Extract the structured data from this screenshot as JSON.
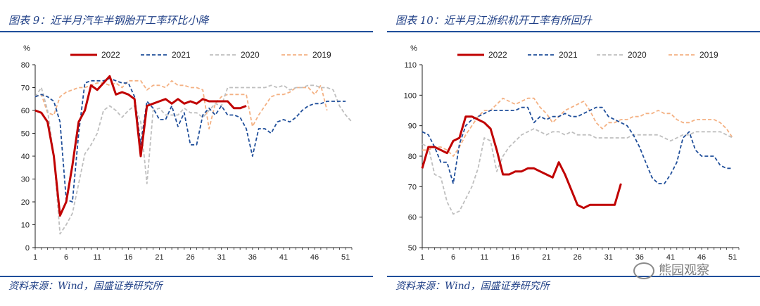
{
  "left": {
    "title": "图表 9：近半月汽车半钢胎开工率环比小降",
    "source": "资料来源：Wind，国盛证券研究所"
  },
  "right": {
    "title": "图表 10：近半月江浙织机开工率有所回升",
    "source": "资料来源：Wind，国盛证券研究所",
    "watermark": "熊园观察"
  },
  "colors": {
    "2022": "#c00000",
    "2021": "#1f4e9a",
    "2020": "#bfbfbf",
    "2019": "#f4b183",
    "accent": "#1f4e9a"
  },
  "chart_data": [
    {
      "type": "line",
      "title": "近半月汽车半钢胎开工率环比小降",
      "ylabel": "%",
      "xlabel": "",
      "ylim": [
        0,
        80
      ],
      "yticks": [
        0,
        10,
        20,
        30,
        40,
        50,
        60,
        70,
        80
      ],
      "xlim": [
        1,
        52
      ],
      "xticks": [
        1,
        6,
        11,
        16,
        21,
        26,
        31,
        36,
        41,
        46,
        51
      ],
      "legend_position": "top",
      "series": [
        {
          "name": "2022",
          "style": "solid",
          "x": [
            1,
            2,
            3,
            4,
            5,
            6,
            7,
            8,
            9,
            10,
            11,
            12,
            13,
            14,
            15,
            16,
            17,
            18,
            19,
            20,
            21,
            22,
            23,
            24,
            25,
            26,
            27,
            28,
            29,
            30,
            31,
            32,
            33,
            34,
            35
          ],
          "values": [
            60,
            59,
            55,
            40,
            14,
            20,
            36,
            55,
            60,
            71,
            69,
            72,
            75,
            67,
            68,
            67,
            65,
            40,
            62,
            63,
            64,
            65,
            63,
            65,
            63,
            64,
            63,
            65,
            64,
            64,
            64,
            64,
            61,
            61,
            62
          ]
        },
        {
          "name": "2021",
          "style": "dashed",
          "x": [
            1,
            2,
            3,
            4,
            5,
            6,
            7,
            8,
            9,
            10,
            11,
            12,
            13,
            14,
            15,
            16,
            17,
            18,
            19,
            20,
            21,
            22,
            23,
            24,
            25,
            26,
            27,
            28,
            29,
            30,
            31,
            32,
            33,
            34,
            35,
            36,
            37,
            38,
            39,
            40,
            41,
            42,
            43,
            44,
            45,
            46,
            47,
            48,
            49,
            50,
            51
          ],
          "values": [
            66,
            67,
            66,
            64,
            55,
            21,
            20,
            50,
            72,
            73,
            73,
            73,
            74,
            73,
            72,
            72,
            66,
            45,
            64,
            61,
            56,
            56,
            62,
            53,
            59,
            45,
            45,
            58,
            61,
            58,
            62,
            58,
            58,
            57,
            52,
            40,
            52,
            52,
            50,
            55,
            56,
            55,
            57,
            60,
            62,
            63,
            63,
            64,
            64,
            64,
            64
          ]
        },
        {
          "name": "2020",
          "style": "dashed",
          "x": [
            1,
            2,
            3,
            4,
            5,
            6,
            7,
            8,
            9,
            10,
            11,
            12,
            13,
            14,
            15,
            16,
            17,
            18,
            19,
            20,
            21,
            22,
            23,
            24,
            25,
            26,
            27,
            28,
            29,
            30,
            31,
            32,
            33,
            34,
            35,
            36,
            37,
            38,
            39,
            40,
            41,
            42,
            43,
            44,
            45,
            46,
            47,
            48,
            49,
            50,
            51,
            52
          ],
          "values": [
            66,
            70,
            60,
            40,
            6,
            10,
            15,
            28,
            41,
            45,
            50,
            60,
            62,
            60,
            57,
            60,
            62,
            55,
            28,
            60,
            61,
            58,
            58,
            58,
            61,
            59,
            59,
            57,
            60,
            63,
            62,
            70,
            70,
            70,
            70,
            70,
            70,
            70,
            71,
            70,
            71,
            69,
            70,
            70,
            71,
            71,
            70,
            70,
            69,
            62,
            58,
            55
          ]
        },
        {
          "name": "2019",
          "style": "dashed",
          "x": [
            1,
            2,
            3,
            4,
            5,
            6,
            7,
            8,
            9,
            10,
            11,
            12,
            13,
            14,
            15,
            16,
            17,
            18,
            19,
            20,
            21,
            22,
            23,
            24,
            25,
            26,
            27,
            28,
            29,
            30,
            31,
            32,
            33,
            34,
            35,
            36,
            37,
            38,
            39,
            40,
            41,
            42,
            43,
            44,
            45,
            46,
            47,
            48
          ],
          "values": [
            66,
            67,
            59,
            58,
            66,
            68,
            69,
            70,
            70,
            71,
            72,
            72,
            71,
            72,
            70,
            73,
            73,
            73,
            69,
            71,
            71,
            70,
            73,
            71,
            71,
            70,
            70,
            69,
            52,
            63,
            66,
            67,
            67,
            67,
            67,
            53,
            58,
            62,
            66,
            67,
            67,
            68,
            70,
            70,
            70,
            67,
            71,
            60
          ]
        }
      ]
    },
    {
      "type": "line",
      "title": "近半月江浙织机开工率有所回升",
      "ylabel": "%",
      "xlabel": "",
      "ylim": [
        50,
        110
      ],
      "yticks": [
        50,
        60,
        70,
        80,
        90,
        100,
        110
      ],
      "xlim": [
        1,
        52
      ],
      "xticks": [
        1,
        6,
        11,
        16,
        21,
        26,
        31,
        36,
        41,
        46,
        51
      ],
      "legend_position": "top",
      "series": [
        {
          "name": "2022",
          "style": "solid",
          "x": [
            1,
            2,
            3,
            4,
            5,
            6,
            7,
            8,
            9,
            10,
            11,
            12,
            13,
            14,
            15,
            16,
            17,
            18,
            19,
            20,
            21,
            22,
            23,
            24,
            25,
            26,
            27,
            28,
            29,
            30,
            31,
            32,
            33
          ],
          "values": [
            76,
            83,
            83,
            82,
            81,
            85,
            86,
            93,
            93,
            92,
            91,
            89,
            82,
            74,
            74,
            75,
            75,
            76,
            76,
            75,
            74,
            73,
            78,
            74,
            69,
            64,
            63,
            64,
            64,
            64,
            64,
            64,
            71
          ]
        },
        {
          "name": "2021",
          "style": "dashed",
          "x": [
            1,
            2,
            3,
            4,
            5,
            6,
            7,
            8,
            9,
            10,
            11,
            12,
            13,
            14,
            15,
            16,
            17,
            18,
            19,
            20,
            21,
            22,
            23,
            24,
            25,
            26,
            27,
            28,
            29,
            30,
            31,
            32,
            33,
            34,
            35,
            36,
            37,
            38,
            39,
            40,
            41,
            42,
            43,
            44,
            45,
            46,
            47,
            48,
            49,
            50,
            51
          ],
          "values": [
            88,
            87,
            83,
            78,
            78,
            71,
            84,
            90,
            92,
            93,
            94,
            95,
            95,
            95,
            95,
            95,
            96,
            96,
            91,
            93,
            92,
            93,
            93,
            94,
            93,
            93,
            94,
            95,
            96,
            96,
            93,
            92,
            91,
            90,
            87,
            83,
            78,
            73,
            71,
            71,
            74,
            78,
            86,
            88,
            82,
            80,
            80,
            80,
            77,
            76,
            76
          ]
        },
        {
          "name": "2020",
          "style": "dashed",
          "x": [
            1,
            2,
            3,
            4,
            5,
            6,
            7,
            8,
            9,
            10,
            11,
            12,
            13,
            14,
            15,
            16,
            17,
            18,
            19,
            20,
            21,
            22,
            23,
            24,
            25,
            26,
            27,
            28,
            29,
            30,
            31,
            32,
            33,
            34,
            35,
            36,
            37,
            38,
            39,
            40,
            41,
            42,
            43,
            44,
            45,
            46,
            47,
            48,
            49,
            50,
            51
          ],
          "values": [
            84,
            83,
            74,
            73,
            65,
            61,
            62,
            66,
            70,
            76,
            86,
            85,
            75,
            80,
            83,
            85,
            87,
            88,
            89,
            88,
            87,
            88,
            88,
            87,
            88,
            87,
            87,
            87,
            86,
            86,
            86,
            86,
            86,
            86,
            87,
            87,
            87,
            87,
            87,
            86,
            85,
            86,
            87,
            87,
            88,
            88,
            88,
            88,
            88,
            87,
            86
          ]
        },
        {
          "name": "2019",
          "style": "dashed",
          "x": [
            1,
            2,
            3,
            4,
            5,
            6,
            7,
            8,
            9,
            10,
            11,
            12,
            13,
            14,
            15,
            16,
            17,
            18,
            19,
            20,
            21,
            22,
            23,
            24,
            25,
            26,
            27,
            28,
            29,
            30,
            31,
            32,
            33,
            34,
            35,
            36,
            37,
            38,
            39,
            40,
            41,
            42,
            43,
            44,
            45,
            46,
            47,
            48,
            49,
            50,
            51
          ],
          "values": [
            82,
            82,
            83,
            83,
            82,
            80,
            83,
            87,
            90,
            93,
            95,
            95,
            97,
            99,
            98,
            97,
            98,
            99,
            99,
            96,
            94,
            91,
            93,
            95,
            96,
            97,
            98,
            95,
            91,
            89,
            91,
            91,
            92,
            92,
            93,
            93,
            94,
            94,
            95,
            94,
            94,
            92,
            91,
            91,
            92,
            92,
            92,
            92,
            91,
            89,
            86
          ]
        }
      ]
    }
  ]
}
